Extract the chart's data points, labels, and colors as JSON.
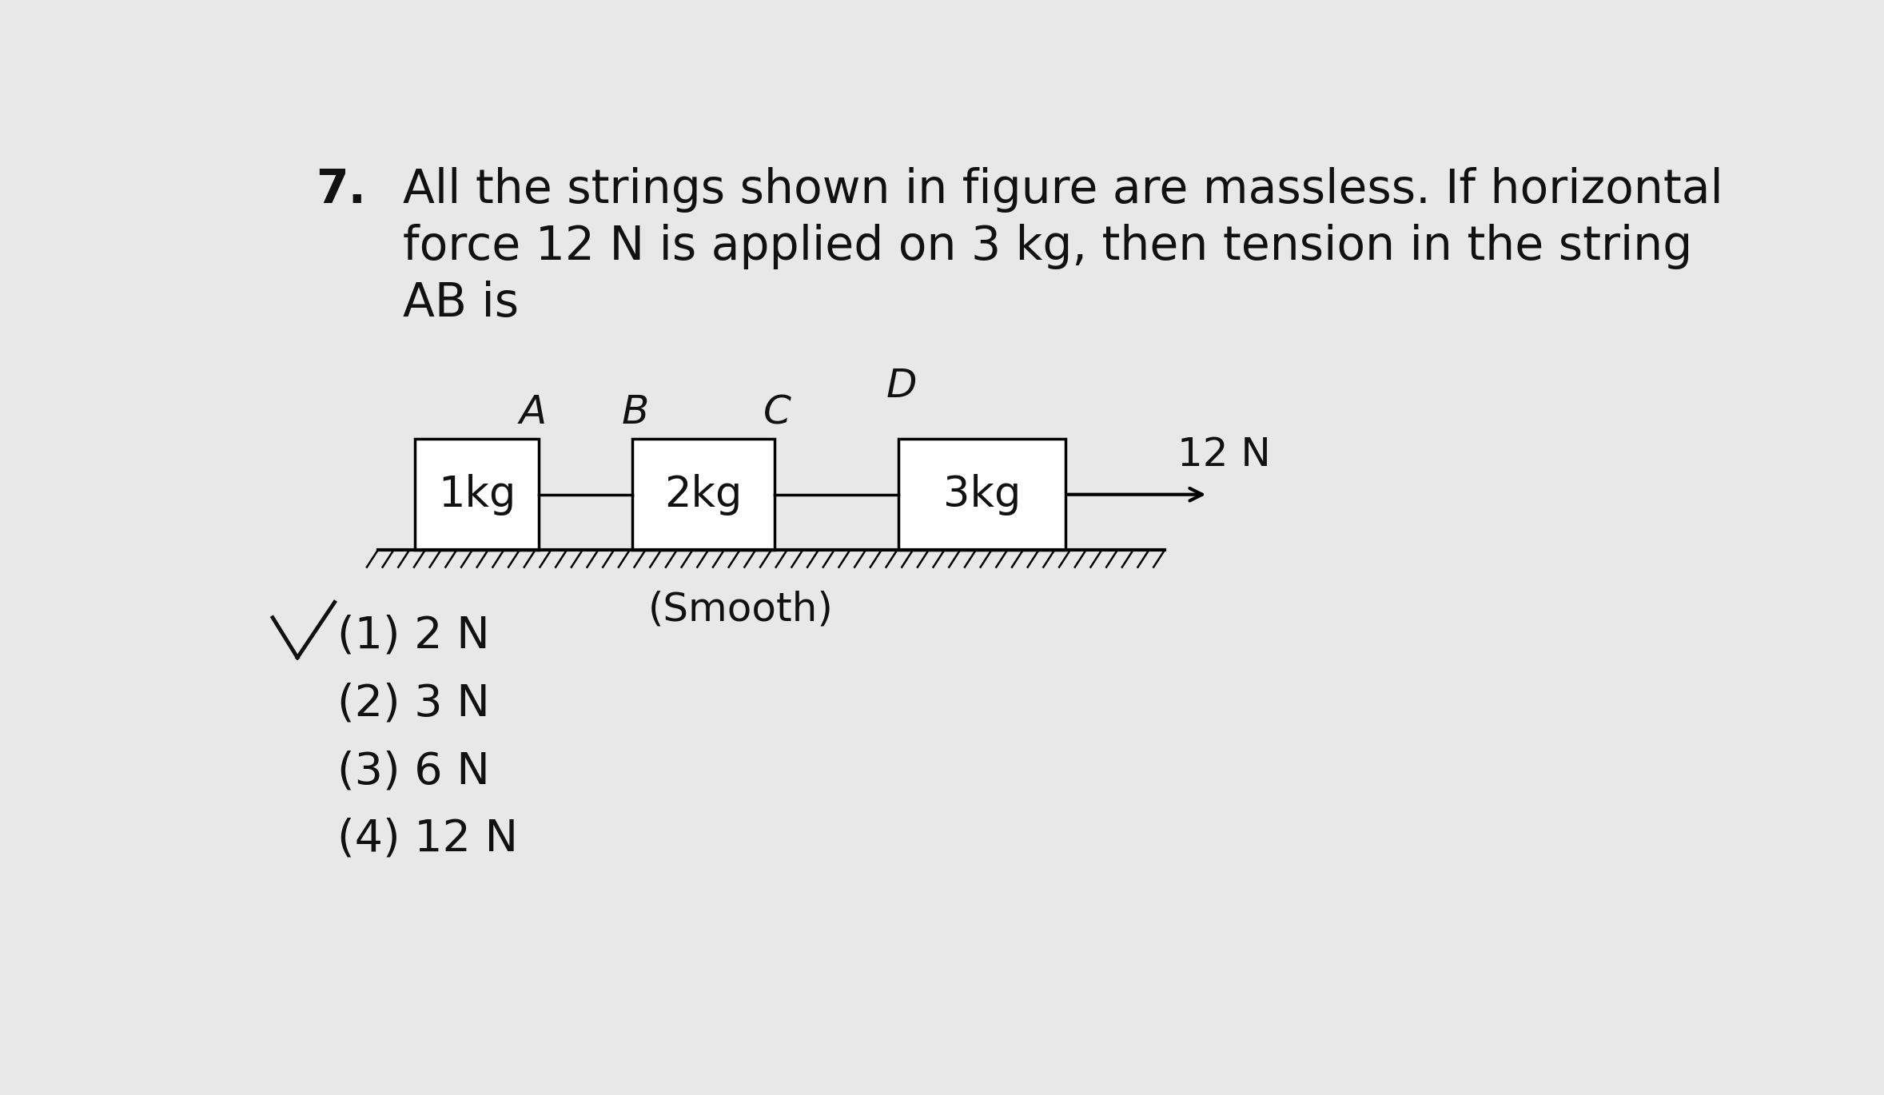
{
  "background_color": "#e8e8e8",
  "title_number": "7.",
  "question_text_line1": "All the strings shown in figure are massless. If horizontal",
  "question_text_line2": "force 12 N is applied on 3 kg, then tension in the string",
  "question_text_line3": "AB is",
  "options": [
    "(1) 2 N",
    "(2) 3 N",
    "(3) 6 N",
    "(4) 12 N"
  ],
  "box1_label": "1kg",
  "box2_label": "2kg",
  "box3_label": "3kg",
  "force_label": "12 N",
  "smooth_label": "(Smooth)",
  "point_A": "A",
  "point_B": "B",
  "point_C": "C",
  "point_D": "D",
  "box_color": "white",
  "line_color": "black",
  "text_color": "#111111",
  "font_size_question": 42,
  "font_size_labels": 38,
  "font_size_options": 40,
  "font_size_points": 36,
  "font_size_smooth": 36,
  "font_size_force": 36
}
